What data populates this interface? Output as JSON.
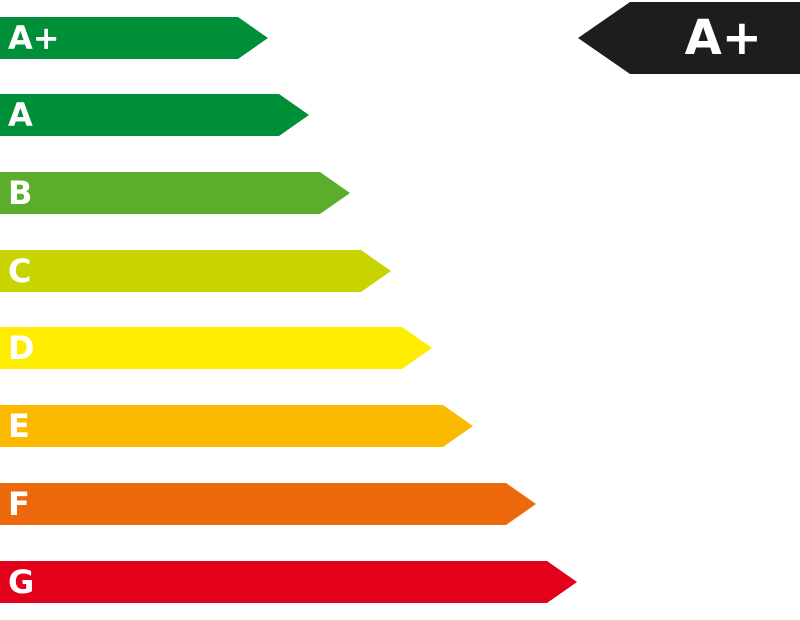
{
  "energy_scale": {
    "bars": [
      {
        "label": "A+",
        "color": "#008f39"
      },
      {
        "label": "A",
        "color": "#008f39"
      },
      {
        "label": "B",
        "color": "#5cad2c"
      },
      {
        "label": "C",
        "color": "#c8d400"
      },
      {
        "label": "D",
        "color": "#ffed00"
      },
      {
        "label": "E",
        "color": "#fbba00"
      },
      {
        "label": "F",
        "color": "#eb690b"
      },
      {
        "label": "G",
        "color": "#e2001a"
      }
    ]
  },
  "rating_indicator": {
    "label": "A+",
    "color": "#1d1d1b"
  }
}
